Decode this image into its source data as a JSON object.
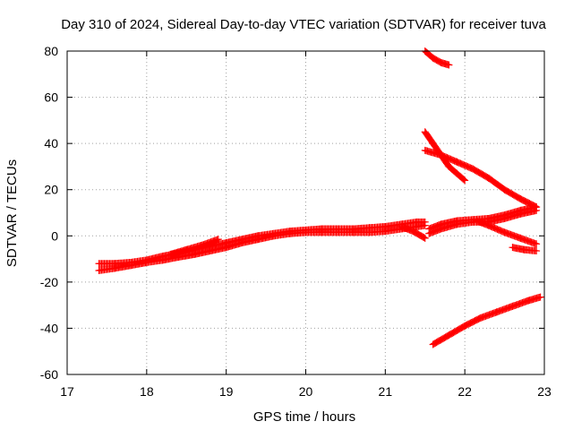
{
  "chart_data": {
    "type": "scatter",
    "title": "Day 310 of 2024, Sidereal Day-to-day VTEC variation (SDTVAR) for receiver tuva",
    "xlabel": "GPS time / hours",
    "ylabel": "SDTVAR / TECUs",
    "xlim": [
      17,
      23
    ],
    "ylim": [
      -60,
      80
    ],
    "xticks": [
      17,
      18,
      19,
      20,
      21,
      22,
      23
    ],
    "yticks": [
      -60,
      -40,
      -20,
      0,
      20,
      40,
      60,
      80
    ],
    "grid": true,
    "grid_style": "dotted",
    "marker": "plus",
    "series_color": "#ff0000",
    "series": [
      {
        "name": "main-trace-upper",
        "points": [
          [
            17.4,
            -12
          ],
          [
            17.6,
            -12
          ],
          [
            17.8,
            -11.5
          ],
          [
            18.0,
            -10.5
          ],
          [
            18.2,
            -8.8
          ],
          [
            18.4,
            -7.5
          ],
          [
            18.6,
            -6
          ],
          [
            18.8,
            -4.5
          ],
          [
            19.0,
            -3
          ],
          [
            19.2,
            -1.5
          ],
          [
            19.4,
            0
          ],
          [
            19.6,
            1
          ],
          [
            19.8,
            2
          ],
          [
            20.0,
            2.5
          ],
          [
            20.2,
            3
          ],
          [
            20.4,
            3
          ],
          [
            20.6,
            3
          ],
          [
            20.8,
            3.5
          ],
          [
            21.0,
            4
          ],
          [
            21.2,
            5
          ],
          [
            21.4,
            6
          ],
          [
            21.5,
            6
          ]
        ]
      },
      {
        "name": "main-trace-lower",
        "points": [
          [
            17.4,
            -15
          ],
          [
            17.6,
            -14
          ],
          [
            17.8,
            -12.8
          ],
          [
            18.0,
            -11.5
          ],
          [
            18.2,
            -10.5
          ],
          [
            18.4,
            -9.2
          ],
          [
            18.6,
            -8
          ],
          [
            18.8,
            -6.5
          ],
          [
            19.0,
            -5
          ],
          [
            19.2,
            -3
          ],
          [
            19.4,
            -1.5
          ],
          [
            19.6,
            0
          ],
          [
            19.8,
            1
          ],
          [
            20.0,
            1.5
          ],
          [
            20.2,
            1.5
          ],
          [
            20.4,
            1.5
          ],
          [
            20.6,
            1.5
          ],
          [
            20.8,
            1.5
          ],
          [
            21.0,
            2
          ],
          [
            21.2,
            3
          ],
          [
            21.4,
            4
          ],
          [
            21.5,
            4.5
          ]
        ]
      },
      {
        "name": "spike-18-9",
        "points": [
          [
            18.3,
            -8
          ],
          [
            18.5,
            -6
          ],
          [
            18.7,
            -4
          ],
          [
            18.9,
            -1.5
          ]
        ]
      },
      {
        "name": "dip-21-5",
        "points": [
          [
            21.2,
            4
          ],
          [
            21.35,
            2
          ],
          [
            21.5,
            -1
          ]
        ]
      },
      {
        "name": "late-band-upper",
        "points": [
          [
            21.55,
            3
          ],
          [
            21.7,
            5
          ],
          [
            21.9,
            6.5
          ],
          [
            22.1,
            7
          ],
          [
            22.3,
            7.5
          ],
          [
            22.5,
            9
          ],
          [
            22.7,
            11
          ],
          [
            22.9,
            12.5
          ]
        ]
      },
      {
        "name": "late-band-lower",
        "points": [
          [
            21.55,
            1
          ],
          [
            21.7,
            3
          ],
          [
            21.9,
            5
          ],
          [
            22.1,
            6
          ],
          [
            22.3,
            6
          ],
          [
            22.5,
            7.5
          ],
          [
            22.7,
            9.5
          ],
          [
            22.9,
            11
          ]
        ]
      },
      {
        "name": "late-descending",
        "points": [
          [
            22.15,
            6.5
          ],
          [
            22.3,
            4.5
          ],
          [
            22.5,
            1.5
          ],
          [
            22.7,
            -1
          ],
          [
            22.9,
            -3.5
          ]
        ]
      },
      {
        "name": "late-short-segment",
        "points": [
          [
            22.6,
            -5
          ],
          [
            22.75,
            -6
          ],
          [
            22.9,
            -6.5
          ]
        ]
      },
      {
        "name": "top-fragment",
        "points": [
          [
            21.5,
            80
          ],
          [
            21.6,
            77
          ],
          [
            21.7,
            75
          ],
          [
            21.8,
            74
          ]
        ]
      },
      {
        "name": "upper-steep",
        "points": [
          [
            21.5,
            45
          ],
          [
            21.6,
            40
          ],
          [
            21.7,
            35
          ],
          [
            21.8,
            30
          ],
          [
            21.9,
            27
          ],
          [
            22.0,
            24
          ]
        ]
      },
      {
        "name": "upper-gentle",
        "points": [
          [
            21.5,
            37
          ],
          [
            21.7,
            35
          ],
          [
            21.9,
            32
          ],
          [
            22.1,
            29
          ],
          [
            22.3,
            25
          ],
          [
            22.5,
            20
          ],
          [
            22.7,
            16
          ],
          [
            22.9,
            12.5
          ]
        ]
      },
      {
        "name": "bottom-rising",
        "points": [
          [
            21.6,
            -47
          ],
          [
            21.8,
            -43
          ],
          [
            22.0,
            -39
          ],
          [
            22.2,
            -35.5
          ],
          [
            22.4,
            -33
          ],
          [
            22.6,
            -30.5
          ],
          [
            22.8,
            -28
          ],
          [
            22.95,
            -26.5
          ]
        ]
      }
    ]
  }
}
